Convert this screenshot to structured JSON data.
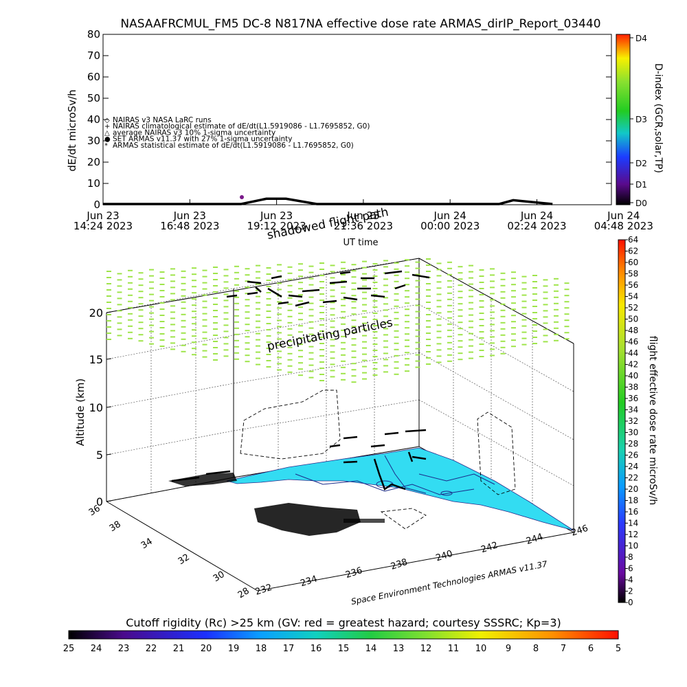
{
  "title": "NASAAFRCMUL_FM5 DC-8    N817NA effective dose rate ARMAS_dirIP_Report_03440",
  "chart_data": [
    {
      "type": "line",
      "ylabel": "dE/dt microSv/h",
      "xlabel": "UT time",
      "ylim": [
        0,
        80
      ],
      "y_ticks": [
        0,
        10,
        20,
        30,
        40,
        50,
        60,
        70,
        80
      ],
      "x_ticks": [
        {
          "line1": "Jun 23",
          "line2": "14:24 2023"
        },
        {
          "line1": "Jun 23",
          "line2": "16:48 2023"
        },
        {
          "line1": "Jun 23",
          "line2": "19:12 2023"
        },
        {
          "line1": "Jun 23",
          "line2": "21:36 2023"
        },
        {
          "line1": "Jun 24",
          "line2": "00:00 2023"
        },
        {
          "line1": "Jun 24",
          "line2": "02:24 2023"
        },
        {
          "line1": "Jun 24",
          "line2": "04:48 2023"
        }
      ],
      "legend": [
        {
          "symbol": "◇",
          "label": "NAIRAS v3 NASA LaRC runs"
        },
        {
          "symbol": "+",
          "label": "NAIRAS climatological estimate of dE/dt(L1.5919086 - L1.7695852, G0)"
        },
        {
          "symbol": "△",
          "label": "average NAIRAS v3 10% 1-sigma uncertainty"
        },
        {
          "symbol": "●",
          "label": "SET ARMAS v11.37 with 27% 1-sigma uncertainty"
        },
        {
          "symbol": "*",
          "label": "ARMAS statistical estimate of dE/dt(L1.5919086 - L1.7695852, G0)"
        }
      ],
      "series": [
        {
          "x": [
            "2023-06-23 14:24",
            "2023-06-23 18:30",
            "2023-06-23 19:15",
            "2023-06-23 19:50",
            "2023-06-23 20:45",
            "2023-06-24 02:10",
            "2023-06-24 02:35",
            "2023-06-24 03:45"
          ],
          "values": [
            0,
            0,
            2.5,
            2.5,
            0,
            0,
            1.8,
            0
          ]
        }
      ],
      "colorbar": {
        "label": "D-index (GCR,solar,TP)",
        "ticks": [
          "D4",
          "D3",
          "D2",
          "D1",
          "D0"
        ]
      }
    },
    {
      "type": "scatter",
      "zlabel": "Altitude (km)",
      "z_ticks": [
        0,
        5,
        10,
        15,
        20
      ],
      "lon_ticks": [
        232,
        234,
        236,
        238,
        240,
        242,
        244,
        246
      ],
      "lat_ticks": [
        28,
        30,
        32,
        34,
        36,
        38
      ],
      "annotations": [
        "shadowed flight path",
        "precipitating particles"
      ],
      "credit": "Space Environment Technologies ARMAS v11.37",
      "colorbar": {
        "label": "flight effective dose rate microSv/h",
        "min": 0,
        "max": 64,
        "step": 2
      }
    }
  ],
  "rigidity_bar": {
    "title": "Cutoff rigidity (Rc) >25 km (GV: red = greatest hazard; courtesy SSSRC; Kp=3)",
    "ticks": [
      25,
      24,
      23,
      22,
      21,
      20,
      19,
      18,
      17,
      16,
      15,
      14,
      13,
      12,
      11,
      10,
      9,
      8,
      7,
      6,
      5
    ]
  },
  "colors": {
    "ground": "#33dcf2",
    "particles": "#9ee44a",
    "plot_line": "#000000"
  }
}
